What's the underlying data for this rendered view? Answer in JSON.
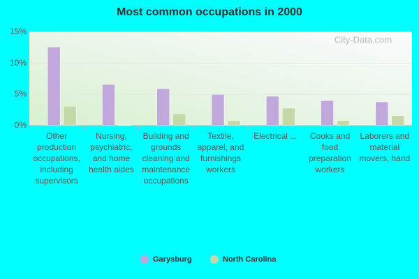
{
  "chart_data": {
    "type": "bar",
    "title": "Most common occupations in 2000",
    "watermark": "City-Data.com",
    "categories": [
      "Other production occupations, including supervisors",
      "Nursing, psychiatric, and home health aides",
      "Building and grounds cleaning and maintenance occupations",
      "Textile, apparel, and furnishings workers",
      "Electrical ...",
      "Cooks and food preparation workers",
      "Laborers and material movers, hand"
    ],
    "series": [
      {
        "name": "Garysburg",
        "color": "#c0a8dc",
        "values": [
          12.6,
          6.6,
          5.9,
          5.0,
          4.7,
          4.0,
          3.8
        ]
      },
      {
        "name": "North Carolina",
        "color": "#c4d8a8",
        "values": [
          3.1,
          0.1,
          1.9,
          0.8,
          2.8,
          0.8,
          1.6
        ]
      }
    ],
    "ylim": [
      0,
      15
    ],
    "yticks": [
      {
        "value": 0,
        "label": "0%"
      },
      {
        "value": 5,
        "label": "5%"
      },
      {
        "value": 10,
        "label": "10%"
      },
      {
        "value": 15,
        "label": "15%"
      }
    ],
    "grid": true,
    "legend": "bottom"
  }
}
